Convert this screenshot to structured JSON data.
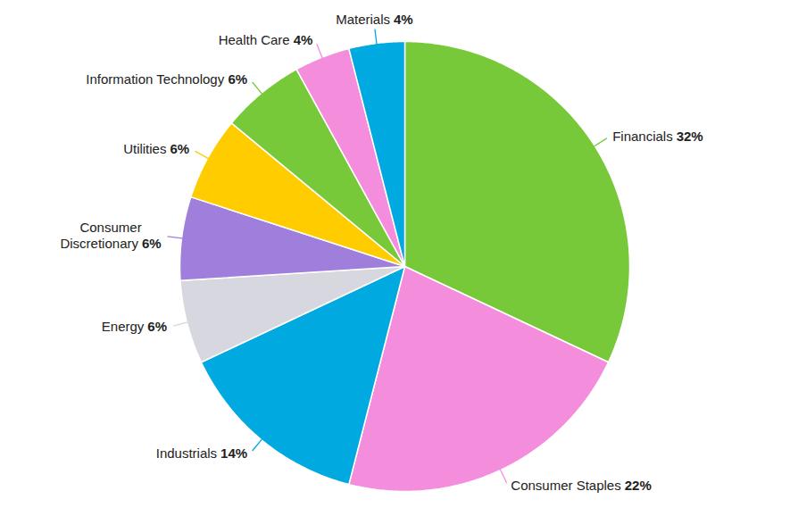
{
  "chart_data": {
    "type": "pie",
    "categories": [
      "Financials",
      "Consumer Staples",
      "Industrials",
      "Energy",
      "Consumer Discretionary",
      "Utilities",
      "Information Technology",
      "Health Care",
      "Materials"
    ],
    "values": [
      32,
      22,
      14,
      6,
      6,
      6,
      6,
      4,
      4
    ],
    "value_labels": [
      "32%",
      "22%",
      "14%",
      "6%",
      "6%",
      "6%",
      "6%",
      "4%",
      "4%"
    ],
    "colors": [
      "#77c93a",
      "#f48ddc",
      "#00a9e0",
      "#d7d7df",
      "#a07fdc",
      "#ffcc00",
      "#77c93a",
      "#f48ddc",
      "#00a9e0"
    ],
    "data_labels": true
  }
}
